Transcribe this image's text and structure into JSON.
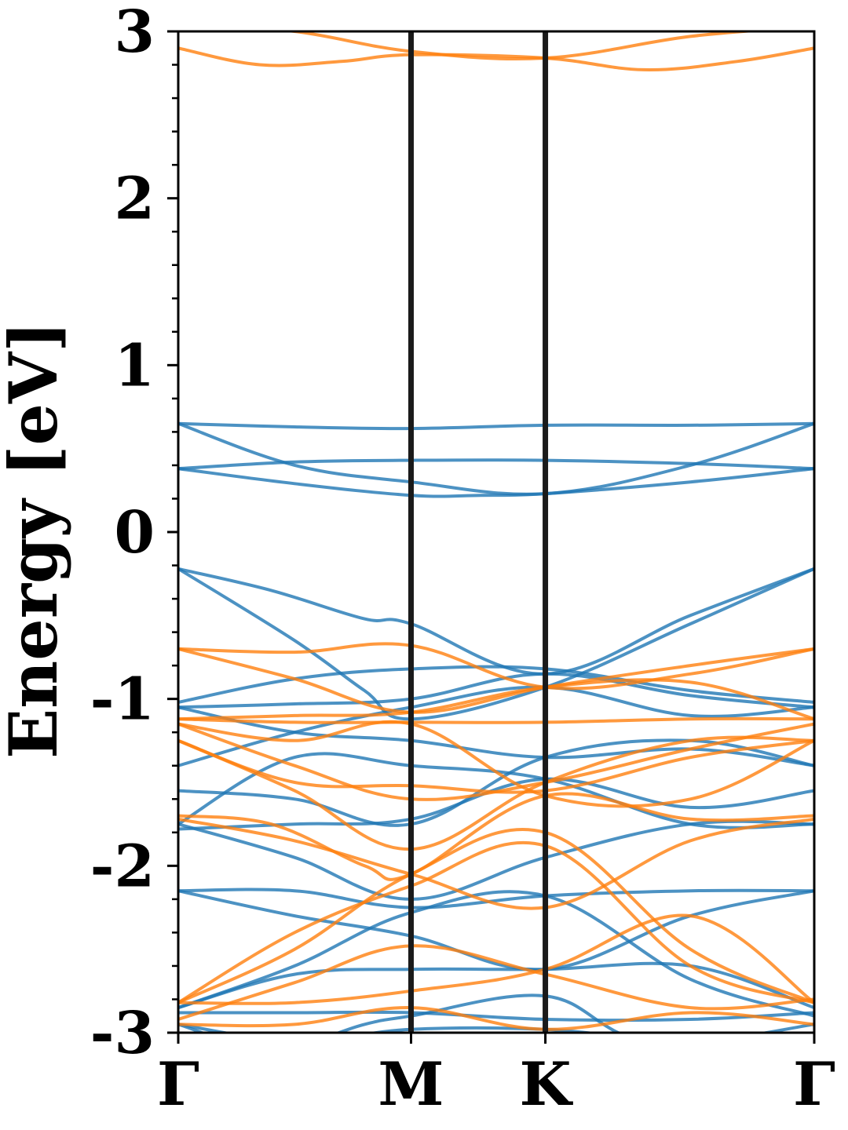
{
  "chart_data": {
    "type": "line",
    "title": "",
    "xlabel": "",
    "ylabel": "Energy [eV]",
    "ylim": [
      -3,
      3
    ],
    "ytick_labels": [
      "-3",
      "-2",
      "-1",
      "0",
      "1",
      "2",
      "3"
    ],
    "ytick_values": [
      -3,
      -2,
      -1,
      0,
      1,
      2,
      3
    ],
    "yminor_step": 0.2,
    "kpoints": [
      "Γ",
      "M",
      "K",
      "Γ"
    ],
    "kpoint_positions": [
      0,
      1,
      1.577,
      2.732
    ],
    "colors": {
      "blue": "#1f77b4",
      "orange": "#ff7f0e",
      "divider": "#1a1a1a"
    },
    "series": [
      {
        "color": "orange",
        "values": [
          [
            0,
            3.05
          ],
          [
            0.5,
            3.0
          ],
          [
            1.0,
            2.88
          ],
          [
            1.577,
            2.84
          ],
          [
            2.2,
            2.97
          ],
          [
            2.732,
            3.03
          ]
        ]
      },
      {
        "color": "orange",
        "values": [
          [
            0,
            2.9
          ],
          [
            0.35,
            2.8
          ],
          [
            0.7,
            2.82
          ],
          [
            1.0,
            2.86
          ],
          [
            1.577,
            2.84
          ],
          [
            2.0,
            2.77
          ],
          [
            2.4,
            2.82
          ],
          [
            2.732,
            2.9
          ]
        ]
      },
      {
        "color": "blue",
        "values": [
          [
            0,
            0.65
          ],
          [
            0.5,
            0.63
          ],
          [
            1.0,
            0.62
          ],
          [
            1.577,
            0.64
          ],
          [
            2.2,
            0.64
          ],
          [
            2.732,
            0.65
          ]
        ]
      },
      {
        "color": "blue",
        "values": [
          [
            0,
            0.65
          ],
          [
            0.5,
            0.4
          ],
          [
            1.0,
            0.3
          ],
          [
            1.577,
            0.23
          ],
          [
            2.2,
            0.4
          ],
          [
            2.732,
            0.65
          ]
        ]
      },
      {
        "color": "blue",
        "values": [
          [
            0,
            0.38
          ],
          [
            0.5,
            0.42
          ],
          [
            1.0,
            0.43
          ],
          [
            1.577,
            0.43
          ],
          [
            2.2,
            0.41
          ],
          [
            2.732,
            0.38
          ]
        ]
      },
      {
        "color": "blue",
        "values": [
          [
            0,
            0.38
          ],
          [
            0.5,
            0.29
          ],
          [
            1.0,
            0.22
          ],
          [
            1.3,
            0.22
          ],
          [
            1.577,
            0.23
          ],
          [
            2.2,
            0.3
          ],
          [
            2.732,
            0.38
          ]
        ]
      },
      {
        "color": "blue",
        "values": [
          [
            0,
            -0.22
          ],
          [
            0.4,
            -0.35
          ],
          [
            0.8,
            -0.52
          ],
          [
            1.0,
            -0.55
          ],
          [
            1.577,
            -0.85
          ],
          [
            2.2,
            -0.5
          ],
          [
            2.732,
            -0.22
          ]
        ]
      },
      {
        "color": "blue",
        "values": [
          [
            0,
            -0.22
          ],
          [
            0.5,
            -0.65
          ],
          [
            0.8,
            -0.95
          ],
          [
            1.0,
            -1.12
          ],
          [
            1.577,
            -0.93
          ],
          [
            2.2,
            -0.55
          ],
          [
            2.732,
            -0.22
          ]
        ]
      },
      {
        "color": "blue",
        "values": [
          [
            0,
            -1.02
          ],
          [
            0.5,
            -0.88
          ],
          [
            1.0,
            -0.82
          ],
          [
            1.577,
            -0.82
          ],
          [
            2.2,
            -0.95
          ],
          [
            2.732,
            -1.02
          ]
        ]
      },
      {
        "color": "blue",
        "values": [
          [
            0,
            -1.05
          ],
          [
            0.5,
            -1.03
          ],
          [
            1.0,
            -1.0
          ],
          [
            1.577,
            -0.85
          ],
          [
            2.2,
            -0.98
          ],
          [
            2.732,
            -1.05
          ]
        ]
      },
      {
        "color": "blue",
        "values": [
          [
            0,
            -1.4
          ],
          [
            0.5,
            -1.2
          ],
          [
            1.0,
            -1.05
          ],
          [
            1.577,
            -0.93
          ],
          [
            2.2,
            -1.1
          ],
          [
            2.732,
            -1.05
          ]
        ]
      },
      {
        "color": "blue",
        "values": [
          [
            0,
            -1.05
          ],
          [
            0.5,
            -1.2
          ],
          [
            1.0,
            -1.25
          ],
          [
            1.577,
            -1.35
          ],
          [
            2.2,
            -1.3
          ],
          [
            2.732,
            -1.4
          ]
        ]
      },
      {
        "color": "blue",
        "values": [
          [
            0,
            -1.55
          ],
          [
            0.5,
            -1.6
          ],
          [
            1.0,
            -1.75
          ],
          [
            1.577,
            -1.35
          ],
          [
            2.2,
            -1.25
          ],
          [
            2.732,
            -1.4
          ]
        ]
      },
      {
        "color": "blue",
        "values": [
          [
            0,
            -1.75
          ],
          [
            0.5,
            -1.35
          ],
          [
            1.0,
            -1.4
          ],
          [
            1.577,
            -1.48
          ],
          [
            2.2,
            -1.75
          ],
          [
            2.732,
            -1.75
          ]
        ]
      },
      {
        "color": "blue",
        "values": [
          [
            0,
            -1.78
          ],
          [
            0.5,
            -1.75
          ],
          [
            1.0,
            -1.72
          ],
          [
            1.577,
            -1.48
          ],
          [
            2.2,
            -1.65
          ],
          [
            2.732,
            -1.55
          ]
        ]
      },
      {
        "color": "blue",
        "values": [
          [
            0,
            -1.75
          ],
          [
            0.5,
            -1.95
          ],
          [
            1.0,
            -2.2
          ],
          [
            1.577,
            -1.95
          ],
          [
            2.2,
            -1.75
          ],
          [
            2.732,
            -1.75
          ]
        ]
      },
      {
        "color": "blue",
        "values": [
          [
            0,
            -2.15
          ],
          [
            0.5,
            -2.15
          ],
          [
            1.0,
            -2.25
          ],
          [
            1.577,
            -2.18
          ],
          [
            2.2,
            -2.15
          ],
          [
            2.732,
            -2.15
          ]
        ]
      },
      {
        "color": "blue",
        "values": [
          [
            0,
            -2.15
          ],
          [
            0.5,
            -2.3
          ],
          [
            1.0,
            -2.42
          ],
          [
            1.577,
            -2.62
          ],
          [
            2.2,
            -2.3
          ],
          [
            2.732,
            -2.15
          ]
        ]
      },
      {
        "color": "blue",
        "values": [
          [
            0,
            -2.85
          ],
          [
            0.5,
            -2.6
          ],
          [
            1.0,
            -2.28
          ],
          [
            1.577,
            -2.18
          ],
          [
            2.2,
            -2.68
          ],
          [
            2.732,
            -2.9
          ]
        ]
      },
      {
        "color": "blue",
        "values": [
          [
            0,
            -2.85
          ],
          [
            0.5,
            -2.65
          ],
          [
            1.0,
            -2.62
          ],
          [
            1.577,
            -2.62
          ],
          [
            2.2,
            -2.6
          ],
          [
            2.732,
            -2.85
          ]
        ]
      },
      {
        "color": "blue",
        "values": [
          [
            0,
            -2.88
          ],
          [
            0.5,
            -2.88
          ],
          [
            1.0,
            -2.88
          ],
          [
            1.577,
            -2.92
          ],
          [
            2.2,
            -2.92
          ],
          [
            2.732,
            -2.88
          ]
        ]
      },
      {
        "color": "blue",
        "values": [
          [
            0,
            -2.95
          ],
          [
            0.5,
            -3.05
          ],
          [
            1.0,
            -2.98
          ],
          [
            1.577,
            -2.98
          ],
          [
            2.2,
            -3.05
          ],
          [
            2.732,
            -2.95
          ]
        ]
      },
      {
        "color": "blue",
        "values": [
          [
            0,
            -2.95
          ],
          [
            0.4,
            -3.1
          ],
          [
            0.8,
            -2.95
          ],
          [
            1.0,
            -2.9
          ],
          [
            1.577,
            -2.78
          ],
          [
            2.0,
            -3.05
          ],
          [
            2.732,
            -3.1
          ]
        ]
      },
      {
        "color": "orange",
        "values": [
          [
            0,
            -0.7
          ],
          [
            0.5,
            -0.72
          ],
          [
            1.0,
            -0.68
          ],
          [
            1.577,
            -0.93
          ],
          [
            2.2,
            -0.85
          ],
          [
            2.732,
            -0.7
          ]
        ]
      },
      {
        "color": "orange",
        "values": [
          [
            0,
            -0.7
          ],
          [
            0.5,
            -0.88
          ],
          [
            1.0,
            -1.08
          ],
          [
            1.577,
            -0.93
          ],
          [
            2.2,
            -0.8
          ],
          [
            2.732,
            -0.7
          ]
        ]
      },
      {
        "color": "orange",
        "values": [
          [
            0,
            -1.12
          ],
          [
            0.5,
            -1.1
          ],
          [
            1.0,
            -1.08
          ],
          [
            1.577,
            -0.93
          ],
          [
            2.2,
            -0.9
          ],
          [
            2.732,
            -1.12
          ]
        ]
      },
      {
        "color": "orange",
        "values": [
          [
            0,
            -1.12
          ],
          [
            0.5,
            -1.14
          ],
          [
            1.0,
            -1.14
          ],
          [
            1.577,
            -1.14
          ],
          [
            2.2,
            -1.12
          ],
          [
            2.732,
            -1.12
          ]
        ]
      },
      {
        "color": "orange",
        "values": [
          [
            0,
            -1.15
          ],
          [
            0.5,
            -1.4
          ],
          [
            1.0,
            -1.6
          ],
          [
            1.577,
            -1.5
          ],
          [
            2.2,
            -1.3
          ],
          [
            2.732,
            -1.15
          ]
        ]
      },
      {
        "color": "orange",
        "values": [
          [
            0,
            -1.15
          ],
          [
            0.5,
            -1.25
          ],
          [
            1.0,
            -1.15
          ],
          [
            1.577,
            -1.58
          ],
          [
            2.2,
            -1.6
          ],
          [
            2.732,
            -1.25
          ]
        ]
      },
      {
        "color": "orange",
        "values": [
          [
            0,
            -1.25
          ],
          [
            0.5,
            -1.5
          ],
          [
            1.0,
            -1.52
          ],
          [
            1.577,
            -1.55
          ],
          [
            2.2,
            -1.35
          ],
          [
            2.732,
            -1.25
          ]
        ]
      },
      {
        "color": "orange",
        "values": [
          [
            0,
            -1.25
          ],
          [
            0.5,
            -1.55
          ],
          [
            1.0,
            -1.9
          ],
          [
            1.577,
            -1.5
          ],
          [
            2.2,
            -1.25
          ],
          [
            2.732,
            -1.25
          ]
        ]
      },
      {
        "color": "orange",
        "values": [
          [
            0,
            -1.7
          ],
          [
            0.4,
            -1.75
          ],
          [
            0.8,
            -2.0
          ],
          [
            1.0,
            -2.05
          ],
          [
            1.577,
            -1.58
          ],
          [
            2.2,
            -1.72
          ],
          [
            2.732,
            -1.7
          ]
        ]
      },
      {
        "color": "orange",
        "values": [
          [
            0,
            -1.72
          ],
          [
            0.5,
            -1.85
          ],
          [
            1.0,
            -2.05
          ],
          [
            1.577,
            -2.25
          ],
          [
            2.2,
            -1.85
          ],
          [
            2.732,
            -1.72
          ]
        ]
      },
      {
        "color": "orange",
        "values": [
          [
            0,
            -2.82
          ],
          [
            0.5,
            -2.5
          ],
          [
            1.0,
            -2.05
          ],
          [
            1.577,
            -1.8
          ],
          [
            2.2,
            -2.5
          ],
          [
            2.732,
            -2.82
          ]
        ]
      },
      {
        "color": "orange",
        "values": [
          [
            0,
            -2.82
          ],
          [
            0.5,
            -2.4
          ],
          [
            1.0,
            -2.12
          ],
          [
            1.577,
            -1.88
          ],
          [
            2.2,
            -2.6
          ],
          [
            2.732,
            -2.82
          ]
        ]
      },
      {
        "color": "orange",
        "values": [
          [
            0,
            -2.82
          ],
          [
            0.5,
            -2.82
          ],
          [
            1.0,
            -2.75
          ],
          [
            1.577,
            -2.62
          ],
          [
            2.2,
            -2.3
          ],
          [
            2.732,
            -2.82
          ]
        ]
      },
      {
        "color": "orange",
        "values": [
          [
            0,
            -2.92
          ],
          [
            0.5,
            -2.7
          ],
          [
            1.0,
            -2.48
          ],
          [
            1.577,
            -2.65
          ],
          [
            2.2,
            -2.85
          ],
          [
            2.732,
            -2.8
          ]
        ]
      },
      {
        "color": "orange",
        "values": [
          [
            0,
            -2.95
          ],
          [
            0.5,
            -2.95
          ],
          [
            1.0,
            -2.85
          ],
          [
            1.577,
            -2.98
          ],
          [
            2.2,
            -2.88
          ],
          [
            2.732,
            -2.95
          ]
        ]
      }
    ]
  }
}
